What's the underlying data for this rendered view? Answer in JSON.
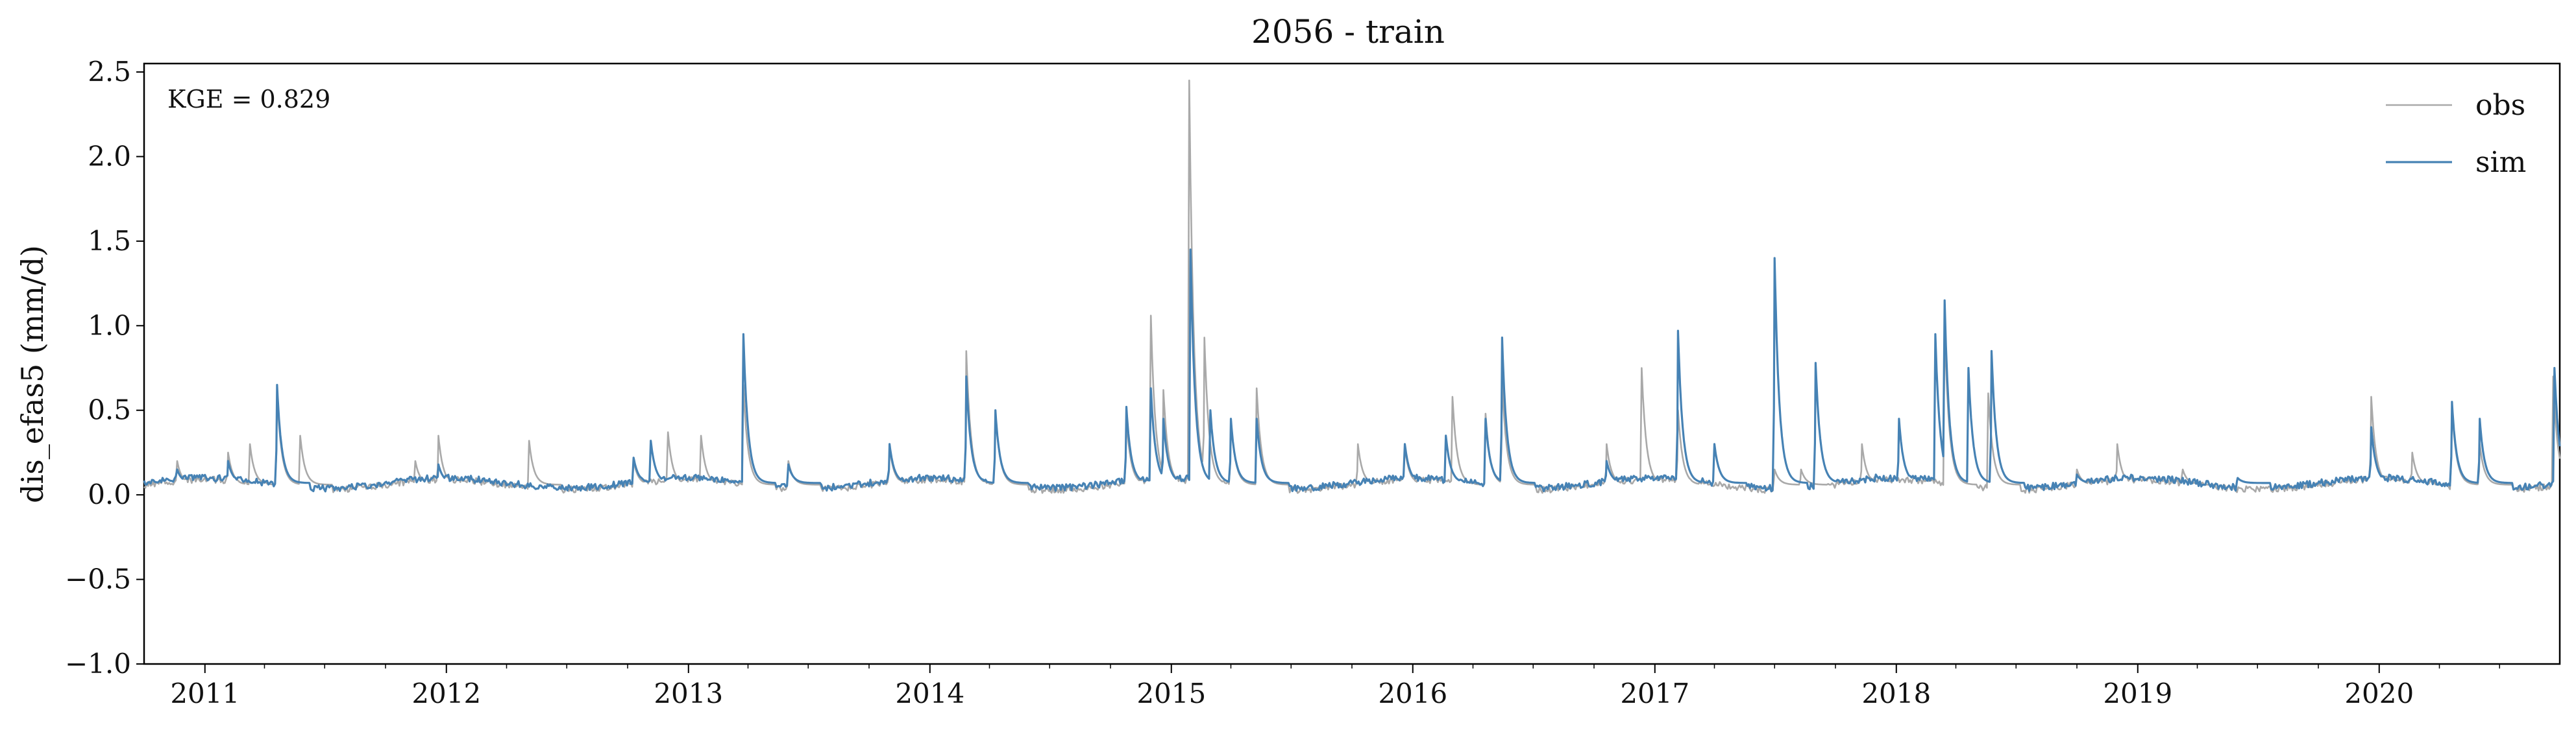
{
  "chart_data": {
    "type": "line",
    "title": "2056 - train",
    "xlabel": "",
    "ylabel": "dis_efas5 (mm/d)",
    "annotation": "KGE = 0.829",
    "ylim": [
      -1.0,
      2.55
    ],
    "yticks": [
      -1.0,
      -0.5,
      0.0,
      0.5,
      1.0,
      1.5,
      2.0,
      2.5
    ],
    "ytick_labels": [
      "−1.0",
      "−0.5",
      "0.0",
      "0.5",
      "1.0",
      "1.5",
      "2.0",
      "2.5"
    ],
    "xlim": [
      "2010-10-01",
      "2020-09-30"
    ],
    "xticks": [
      "2011-01-01",
      "2012-01-01",
      "2013-01-01",
      "2014-01-01",
      "2015-01-01",
      "2016-01-01",
      "2017-01-01",
      "2018-01-01",
      "2019-01-01",
      "2020-01-01"
    ],
    "xtick_labels": [
      "2011",
      "2012",
      "2013",
      "2014",
      "2015",
      "2016",
      "2017",
      "2018",
      "2019",
      "2020"
    ],
    "legend_position": "top-right",
    "grid": false,
    "series": [
      {
        "name": "obs",
        "color": "#a9a9a9",
        "baseline": 0.06,
        "peaks": [
          [
            "2010-11-20",
            0.2
          ],
          [
            "2011-02-05",
            0.25
          ],
          [
            "2011-03-10",
            0.3
          ],
          [
            "2011-04-20",
            0.6
          ],
          [
            "2011-05-25",
            0.35
          ],
          [
            "2011-11-15",
            0.2
          ],
          [
            "2011-12-20",
            0.35
          ],
          [
            "2012-05-05",
            0.32
          ],
          [
            "2012-10-10",
            0.2
          ],
          [
            "2012-12-01",
            0.37
          ],
          [
            "2013-01-20",
            0.35
          ],
          [
            "2013-03-25",
            0.65
          ],
          [
            "2013-06-01",
            0.2
          ],
          [
            "2013-11-01",
            0.28
          ],
          [
            "2014-02-25",
            0.85
          ],
          [
            "2014-04-10",
            0.5
          ],
          [
            "2014-10-25",
            0.45
          ],
          [
            "2014-12-01",
            1.06
          ],
          [
            "2014-12-20",
            0.62
          ],
          [
            "2015-01-28",
            2.45
          ],
          [
            "2015-02-20",
            0.93
          ],
          [
            "2015-04-01",
            0.45
          ],
          [
            "2015-05-10",
            0.63
          ],
          [
            "2015-10-10",
            0.3
          ],
          [
            "2015-12-20",
            0.28
          ],
          [
            "2016-03-01",
            0.58
          ],
          [
            "2016-04-20",
            0.48
          ],
          [
            "2016-05-15",
            0.68
          ],
          [
            "2016-10-20",
            0.3
          ],
          [
            "2016-12-12",
            0.75
          ],
          [
            "2017-02-05",
            0.5
          ],
          [
            "2017-07-01",
            0.15
          ],
          [
            "2017-08-10",
            0.15
          ],
          [
            "2017-11-10",
            0.3
          ],
          [
            "2018-03-15",
            1.0
          ],
          [
            "2018-05-20",
            0.6
          ],
          [
            "2018-10-01",
            0.15
          ],
          [
            "2018-12-01",
            0.3
          ],
          [
            "2019-03-10",
            0.15
          ],
          [
            "2019-12-20",
            0.58
          ],
          [
            "2020-02-20",
            0.25
          ],
          [
            "2020-04-20",
            0.52
          ],
          [
            "2020-06-01",
            0.3
          ],
          [
            "2020-09-20",
            0.7
          ]
        ]
      },
      {
        "name": "sim",
        "color": "#4682b4",
        "baseline": 0.07,
        "peaks": [
          [
            "2010-11-20",
            0.15
          ],
          [
            "2011-02-05",
            0.2
          ],
          [
            "2011-04-20",
            0.65
          ],
          [
            "2011-12-20",
            0.18
          ],
          [
            "2012-10-10",
            0.22
          ],
          [
            "2012-11-05",
            0.32
          ],
          [
            "2013-03-25",
            0.95
          ],
          [
            "2013-06-01",
            0.18
          ],
          [
            "2013-11-01",
            0.3
          ],
          [
            "2014-02-25",
            0.7
          ],
          [
            "2014-04-10",
            0.5
          ],
          [
            "2014-10-25",
            0.52
          ],
          [
            "2014-12-01",
            0.63
          ],
          [
            "2014-12-20",
            0.45
          ],
          [
            "2015-01-30",
            1.45
          ],
          [
            "2015-03-01",
            0.5
          ],
          [
            "2015-04-01",
            0.45
          ],
          [
            "2015-05-10",
            0.45
          ],
          [
            "2015-12-20",
            0.3
          ],
          [
            "2016-02-20",
            0.35
          ],
          [
            "2016-04-20",
            0.45
          ],
          [
            "2016-05-15",
            0.93
          ],
          [
            "2016-10-20",
            0.2
          ],
          [
            "2017-02-05",
            0.97
          ],
          [
            "2017-04-01",
            0.3
          ],
          [
            "2017-07-01",
            1.4
          ],
          [
            "2017-09-01",
            0.78
          ],
          [
            "2017-12-01",
            0.12
          ],
          [
            "2018-01-05",
            0.45
          ],
          [
            "2018-03-01",
            0.95
          ],
          [
            "2018-03-15",
            1.15
          ],
          [
            "2018-04-20",
            0.75
          ],
          [
            "2018-05-25",
            0.85
          ],
          [
            "2018-10-01",
            0.12
          ],
          [
            "2019-06-01",
            0.1
          ],
          [
            "2019-12-20",
            0.4
          ],
          [
            "2020-04-20",
            0.55
          ],
          [
            "2020-06-01",
            0.45
          ],
          [
            "2020-09-22",
            0.75
          ]
        ]
      }
    ]
  }
}
